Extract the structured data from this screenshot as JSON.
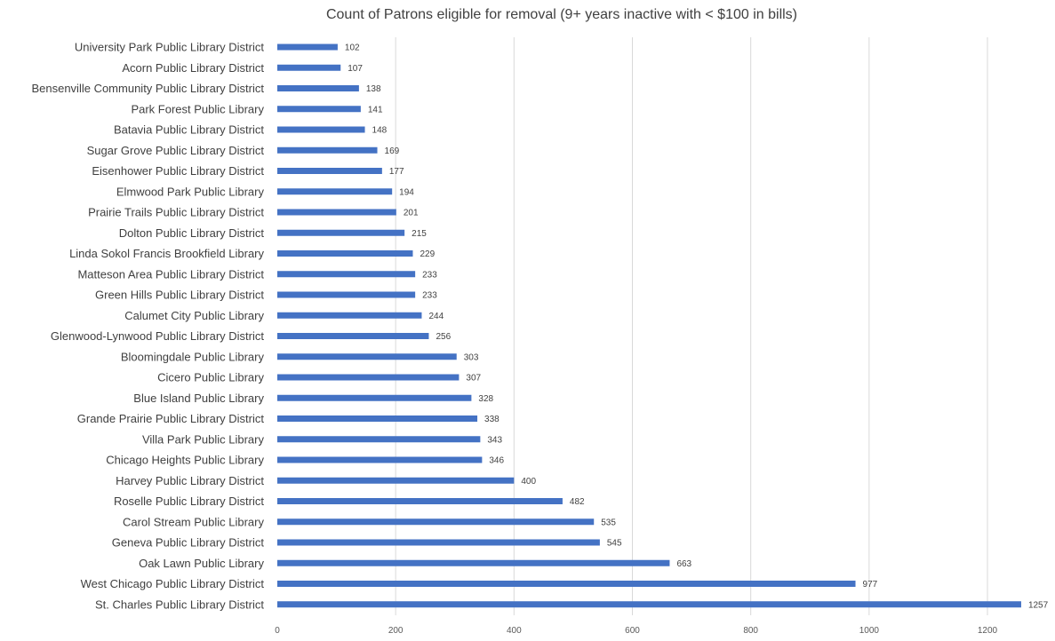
{
  "chart_data": {
    "type": "bar",
    "orientation": "horizontal",
    "title": "Count of Patrons eligible for removal (9+ years inactive with < $100 in bills)",
    "xlabel": "",
    "ylabel": "",
    "categories": [
      "University Park Public Library District",
      "Acorn Public Library District",
      "Bensenville Community Public Library District",
      "Park Forest Public Library",
      "Batavia Public Library District",
      "Sugar Grove Public Library District",
      "Eisenhower Public Library District",
      "Elmwood Park Public Library",
      "Prairie Trails Public Library District",
      "Dolton Public Library District",
      "Linda Sokol Francis Brookfield Library",
      "Matteson Area Public Library District",
      "Green Hills Public Library District",
      "Calumet City Public Library",
      "Glenwood-Lynwood Public Library District",
      "Bloomingdale Public Library",
      "Cicero Public Library",
      "Blue Island Public Library",
      "Grande Prairie Public Library District",
      "Villa Park Public Library",
      "Chicago Heights Public Library",
      "Harvey Public Library District",
      "Roselle Public Library District",
      "Carol Stream Public Library",
      "Geneva Public Library District",
      "Oak Lawn Public Library",
      "West Chicago Public Library District",
      "St. Charles Public Library District"
    ],
    "values": [
      102,
      107,
      138,
      141,
      148,
      169,
      177,
      194,
      201,
      215,
      229,
      233,
      233,
      244,
      256,
      303,
      307,
      328,
      338,
      343,
      346,
      400,
      482,
      535,
      545,
      663,
      977,
      1257
    ],
    "xlim": [
      0,
      1200
    ],
    "xticks": [
      0,
      200,
      400,
      600,
      800,
      1000,
      1200
    ],
    "grid": "vertical",
    "legend": "none",
    "data_labels": true,
    "bar_color": "#4472c4"
  }
}
